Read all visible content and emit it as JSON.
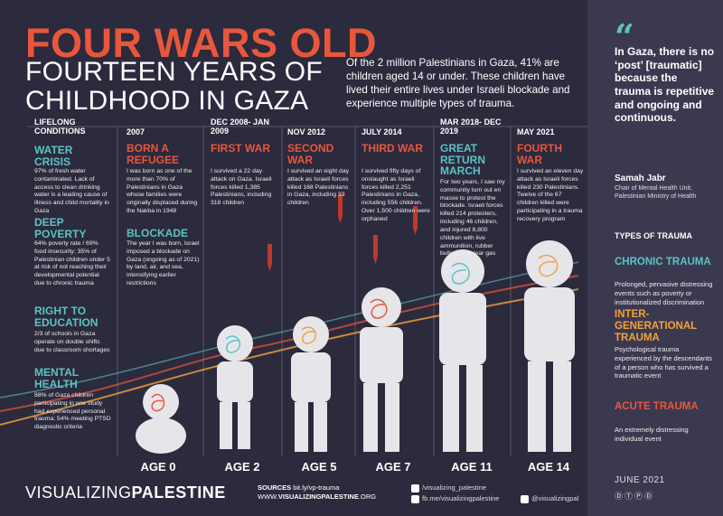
{
  "title": "FOUR WARS OLD",
  "subtitle": "FOURTEEN YEARS OF CHILDHOOD IN GAZA",
  "intro": "Of the 2 million Palestinians in Gaza, 41% are children aged 14 or under. These children have lived their entire lives under Israeli blockade and experience multiple types of trauma.",
  "lifelong": {
    "header": "LIFELONG CONDITIONS",
    "items": [
      {
        "title": "WATER CRISIS",
        "text": "97% of fresh water contaminated. Lack of access to clean drinking water is a leading cause of illness and child mortality in Gaza"
      },
      {
        "title": "DEEP POVERTY",
        "text": "64% poverty rate / 69% food insecurity; 35% of Palestinian children under 5 at risk of not reaching their developmental potential due to chronic trauma"
      },
      {
        "title": "RIGHT TO EDUCATION",
        "text": "2/3 of schools in Gaza operate on double shifts due to classroom shortages"
      },
      {
        "title": "MENTAL HEALTH",
        "text": "88% of Gaza children participating in one study had experienced personal trauma; 54% meeting PTSD diagnostic criteria"
      }
    ]
  },
  "columns": [
    {
      "date": "2007",
      "title": "BORN A REFUGEE",
      "text": "I was born as one of the more than 70% of Palestinians in Gaza whose families were originally displaced during the Nakba in 1948",
      "title2": "BLOCKADE",
      "text2": "The year I was born, Israel imposed a blockade on Gaza (ongoing as of 2021) by land, air, and sea, intensifying earlier restrictions",
      "age": "AGE 0"
    },
    {
      "date": "DEC 2008- JAN 2009",
      "title": "FIRST WAR",
      "text": "I survived a 22 day attack on Gaza. Israeli forces killed 1,385 Palestinians, including 318 children",
      "age": "AGE 2"
    },
    {
      "date": "NOV 2012",
      "title": "SECOND WAR",
      "text": "I survived an eight day attack as Israeli forces killed 168 Palestinians in Gaza, including 33 children",
      "age": "AGE 5"
    },
    {
      "date": "JULY 2014",
      "title": "THIRD WAR",
      "text": "I survived fifty days of onslaught as Israeli forces killed 2,251 Palestinians in Gaza, including 556 children. Over 1,500 children were orphaned",
      "age": "AGE 7"
    },
    {
      "date": "MAR 2018- DEC 2019",
      "title": "GREAT RETURN MARCH",
      "text": "For two years, I saw my community turn out en masse to protest the blockade. Israeli forces killed 214 protesters, including 46 children, and injured 8,800 children with live ammunition, rubber bullets, and tear gas",
      "age": "AGE 11"
    },
    {
      "date": "MAY 2021",
      "title": "FOURTH WAR",
      "text": "I survived an eleven day attack as Israeli forces killed 230 Palestinians. Twelve of the 67 children killed were participating in a trauma recovery program",
      "age": "AGE 14"
    }
  ],
  "sidebar": {
    "quote": "In Gaza, there is no ‘post’ [traumatic] because the trauma is repetitive and ongoing and continuous.",
    "author": "Samah Jabr",
    "role": "Chair of Mental Health Unit, Palestinian Ministry of Health",
    "types_header": "TYPES OF TRAUMA",
    "types": [
      {
        "title": "CHRONIC TRAUMA",
        "text": "Prolonged, pervasive distressing events such as poverty or institutionalized discrimination"
      },
      {
        "title": "INTER- GENERATIONAL TRAUMA",
        "text": "Psychological trauma experienced by the descendants of a person who has survived a traumatic event"
      },
      {
        "title": "ACUTE TRAUMA",
        "text": "An extremely distressing individual event"
      }
    ],
    "date": "JUNE 2021"
  },
  "footer": {
    "brand_light": "VISUALIZING",
    "brand_bold": "PALESTINE",
    "sources_label": "SOURCES",
    "sources_link": "bit.ly/vp-trauma",
    "www": "WWW.",
    "www_bold": "VISUALIZINGPALESTINE",
    "www_end": ".ORG",
    "instagram": "/visualizing_palestine",
    "facebook": "fb.me/visualizingpalestine",
    "twitter": "@visualizingpal"
  },
  "colors": {
    "accent": "#e8573c",
    "teal": "#5bc3c5",
    "amber": "#f2a23c",
    "background": "#2c2a3d"
  }
}
